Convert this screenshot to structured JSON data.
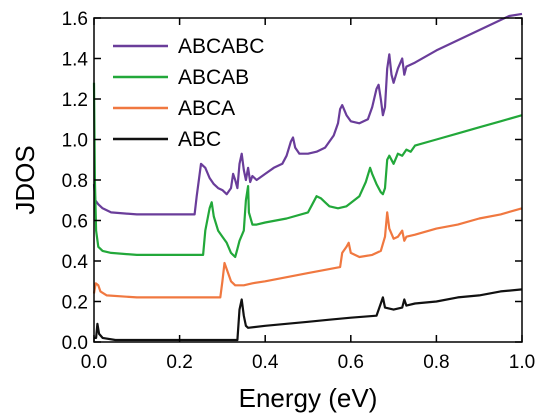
{
  "chart_data": {
    "type": "line",
    "title": "",
    "xlabel": "Energy (eV)",
    "ylabel": "JDOS",
    "xlim": [
      0.0,
      1.0
    ],
    "ylim": [
      0.0,
      1.6
    ],
    "xticks": [
      "0.0",
      "0.2",
      "0.4",
      "0.6",
      "0.8",
      "1.0"
    ],
    "yticks": [
      "0.0",
      "0.2",
      "0.4",
      "0.6",
      "0.8",
      "1.0",
      "1.2",
      "1.4",
      "1.6"
    ],
    "legend": "top-left",
    "series": [
      {
        "name": "ABCABC",
        "color": "#6a3d9a",
        "points": [
          [
            0.0,
            0.78
          ],
          [
            0.003,
            0.7
          ],
          [
            0.01,
            0.68
          ],
          [
            0.02,
            0.66
          ],
          [
            0.04,
            0.64
          ],
          [
            0.1,
            0.63
          ],
          [
            0.2,
            0.63
          ],
          [
            0.235,
            0.63
          ],
          [
            0.24,
            0.72
          ],
          [
            0.25,
            0.88
          ],
          [
            0.26,
            0.86
          ],
          [
            0.27,
            0.81
          ],
          [
            0.28,
            0.78
          ],
          [
            0.29,
            0.76
          ],
          [
            0.3,
            0.75
          ],
          [
            0.31,
            0.73
          ],
          [
            0.32,
            0.76
          ],
          [
            0.325,
            0.83
          ],
          [
            0.33,
            0.8
          ],
          [
            0.335,
            0.76
          ],
          [
            0.34,
            0.88
          ],
          [
            0.345,
            0.93
          ],
          [
            0.35,
            0.85
          ],
          [
            0.355,
            0.8
          ],
          [
            0.36,
            0.86
          ],
          [
            0.365,
            0.79
          ],
          [
            0.37,
            0.82
          ],
          [
            0.38,
            0.8
          ],
          [
            0.4,
            0.83
          ],
          [
            0.42,
            0.86
          ],
          [
            0.44,
            0.88
          ],
          [
            0.45,
            0.92
          ],
          [
            0.46,
            0.99
          ],
          [
            0.465,
            1.01
          ],
          [
            0.47,
            0.96
          ],
          [
            0.48,
            0.93
          ],
          [
            0.5,
            0.93
          ],
          [
            0.52,
            0.94
          ],
          [
            0.54,
            0.96
          ],
          [
            0.56,
            1.02
          ],
          [
            0.57,
            1.08
          ],
          [
            0.575,
            1.15
          ],
          [
            0.58,
            1.17
          ],
          [
            0.59,
            1.12
          ],
          [
            0.6,
            1.09
          ],
          [
            0.62,
            1.08
          ],
          [
            0.64,
            1.1
          ],
          [
            0.65,
            1.16
          ],
          [
            0.66,
            1.25
          ],
          [
            0.665,
            1.27
          ],
          [
            0.67,
            1.2
          ],
          [
            0.675,
            1.12
          ],
          [
            0.68,
            1.16
          ],
          [
            0.685,
            1.35
          ],
          [
            0.69,
            1.42
          ],
          [
            0.695,
            1.32
          ],
          [
            0.7,
            1.28
          ],
          [
            0.71,
            1.35
          ],
          [
            0.72,
            1.4
          ],
          [
            0.725,
            1.32
          ],
          [
            0.73,
            1.36
          ],
          [
            0.74,
            1.37
          ],
          [
            0.75,
            1.38
          ],
          [
            0.8,
            1.44
          ],
          [
            0.85,
            1.49
          ],
          [
            0.9,
            1.54
          ],
          [
            0.95,
            1.59
          ],
          [
            0.97,
            1.61
          ],
          [
            1.0,
            1.62
          ]
        ]
      },
      {
        "name": "ABCAB",
        "color": "#22a83a",
        "points": [
          [
            0.0,
            1.28
          ],
          [
            0.002,
            0.8
          ],
          [
            0.005,
            0.55
          ],
          [
            0.01,
            0.47
          ],
          [
            0.02,
            0.45
          ],
          [
            0.04,
            0.44
          ],
          [
            0.1,
            0.43
          ],
          [
            0.2,
            0.43
          ],
          [
            0.255,
            0.43
          ],
          [
            0.26,
            0.55
          ],
          [
            0.27,
            0.66
          ],
          [
            0.275,
            0.69
          ],
          [
            0.28,
            0.62
          ],
          [
            0.29,
            0.55
          ],
          [
            0.3,
            0.52
          ],
          [
            0.31,
            0.49
          ],
          [
            0.32,
            0.44
          ],
          [
            0.33,
            0.42
          ],
          [
            0.335,
            0.46
          ],
          [
            0.34,
            0.5
          ],
          [
            0.35,
            0.55
          ],
          [
            0.355,
            0.7
          ],
          [
            0.36,
            0.77
          ],
          [
            0.362,
            0.64
          ],
          [
            0.37,
            0.58
          ],
          [
            0.38,
            0.58
          ],
          [
            0.4,
            0.59
          ],
          [
            0.45,
            0.61
          ],
          [
            0.5,
            0.64
          ],
          [
            0.51,
            0.68
          ],
          [
            0.52,
            0.72
          ],
          [
            0.53,
            0.71
          ],
          [
            0.54,
            0.69
          ],
          [
            0.55,
            0.67
          ],
          [
            0.57,
            0.66
          ],
          [
            0.59,
            0.67
          ],
          [
            0.62,
            0.72
          ],
          [
            0.635,
            0.79
          ],
          [
            0.645,
            0.86
          ],
          [
            0.65,
            0.83
          ],
          [
            0.66,
            0.78
          ],
          [
            0.67,
            0.74
          ],
          [
            0.675,
            0.73
          ],
          [
            0.68,
            0.76
          ],
          [
            0.685,
            0.9
          ],
          [
            0.69,
            0.92
          ],
          [
            0.7,
            0.88
          ],
          [
            0.71,
            0.93
          ],
          [
            0.72,
            0.92
          ],
          [
            0.73,
            0.95
          ],
          [
            0.74,
            0.94
          ],
          [
            0.75,
            0.97
          ],
          [
            0.8,
            1.0
          ],
          [
            0.85,
            1.03
          ],
          [
            0.9,
            1.06
          ],
          [
            0.95,
            1.09
          ],
          [
            1.0,
            1.12
          ]
        ]
      },
      {
        "name": "ABCA",
        "color": "#f07840",
        "points": [
          [
            0.0,
            0.24
          ],
          [
            0.004,
            0.29
          ],
          [
            0.01,
            0.28
          ],
          [
            0.015,
            0.25
          ],
          [
            0.03,
            0.23
          ],
          [
            0.1,
            0.22
          ],
          [
            0.2,
            0.22
          ],
          [
            0.295,
            0.22
          ],
          [
            0.3,
            0.3
          ],
          [
            0.305,
            0.39
          ],
          [
            0.31,
            0.36
          ],
          [
            0.32,
            0.3
          ],
          [
            0.33,
            0.28
          ],
          [
            0.35,
            0.28
          ],
          [
            0.37,
            0.29
          ],
          [
            0.4,
            0.3
          ],
          [
            0.45,
            0.32
          ],
          [
            0.5,
            0.34
          ],
          [
            0.55,
            0.36
          ],
          [
            0.575,
            0.37
          ],
          [
            0.58,
            0.44
          ],
          [
            0.59,
            0.47
          ],
          [
            0.595,
            0.49
          ],
          [
            0.6,
            0.44
          ],
          [
            0.62,
            0.42
          ],
          [
            0.65,
            0.43
          ],
          [
            0.67,
            0.45
          ],
          [
            0.68,
            0.52
          ],
          [
            0.685,
            0.64
          ],
          [
            0.69,
            0.56
          ],
          [
            0.7,
            0.51
          ],
          [
            0.71,
            0.52
          ],
          [
            0.72,
            0.55
          ],
          [
            0.725,
            0.5
          ],
          [
            0.73,
            0.52
          ],
          [
            0.75,
            0.53
          ],
          [
            0.8,
            0.56
          ],
          [
            0.85,
            0.58
          ],
          [
            0.9,
            0.61
          ],
          [
            0.95,
            0.63
          ],
          [
            1.0,
            0.66
          ]
        ]
      },
      {
        "name": "ABC",
        "color": "#111111",
        "points": [
          [
            0.0,
            0.02
          ],
          [
            0.005,
            0.02
          ],
          [
            0.008,
            0.09
          ],
          [
            0.012,
            0.04
          ],
          [
            0.02,
            0.02
          ],
          [
            0.05,
            0.01
          ],
          [
            0.1,
            0.01
          ],
          [
            0.2,
            0.01
          ],
          [
            0.3,
            0.01
          ],
          [
            0.335,
            0.01
          ],
          [
            0.34,
            0.16
          ],
          [
            0.345,
            0.21
          ],
          [
            0.35,
            0.13
          ],
          [
            0.355,
            0.08
          ],
          [
            0.36,
            0.07
          ],
          [
            0.4,
            0.08
          ],
          [
            0.45,
            0.09
          ],
          [
            0.5,
            0.1
          ],
          [
            0.55,
            0.11
          ],
          [
            0.6,
            0.12
          ],
          [
            0.66,
            0.13
          ],
          [
            0.67,
            0.19
          ],
          [
            0.675,
            0.22
          ],
          [
            0.68,
            0.17
          ],
          [
            0.7,
            0.16
          ],
          [
            0.72,
            0.17
          ],
          [
            0.725,
            0.21
          ],
          [
            0.73,
            0.18
          ],
          [
            0.75,
            0.19
          ],
          [
            0.8,
            0.2
          ],
          [
            0.85,
            0.22
          ],
          [
            0.9,
            0.23
          ],
          [
            0.95,
            0.25
          ],
          [
            1.0,
            0.26
          ]
        ]
      }
    ]
  }
}
